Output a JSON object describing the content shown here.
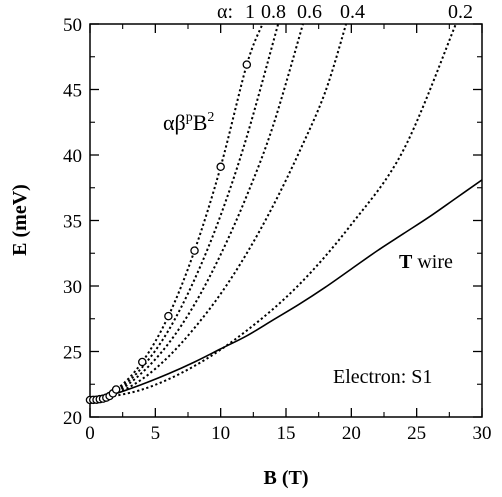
{
  "chart_data": {
    "type": "line",
    "xlabel": "B (T)",
    "ylabel": "E (meV)",
    "xlim": [
      0,
      30
    ],
    "ylim": [
      20,
      50
    ],
    "xticks": [
      0,
      5,
      10,
      15,
      20,
      25,
      30
    ],
    "yticks": [
      20,
      25,
      30,
      35,
      40,
      45,
      50
    ],
    "grid": false,
    "annotations": {
      "alpha_header": "α:",
      "alpha_values": [
        "1",
        "0.8",
        "0.6",
        "0.4",
        "0.2"
      ],
      "formula": "αβ",
      "formula_sup1": "p",
      "formula_mid": "B",
      "formula_sup2": "2",
      "wire_label_bold": "T",
      "wire_label_rest": " wire",
      "corner_label": "Electron: S1"
    },
    "series": [
      {
        "style": "solid",
        "x": [
          0,
          2,
          4,
          6,
          8,
          10,
          12,
          14,
          16,
          18,
          20,
          22,
          24,
          26,
          28,
          30
        ],
        "y": [
          21.3,
          21.8,
          22.5,
          23.3,
          24.2,
          25.2,
          26.2,
          27.4,
          28.6,
          29.9,
          31.3,
          32.7,
          34.0,
          35.3,
          36.7,
          38.1
        ]
      },
      {
        "alpha": "1",
        "style": "dotted",
        "x": [
          0,
          2,
          4,
          6,
          8,
          10,
          12,
          13.2
        ],
        "y": [
          21.3,
          22.1,
          24.2,
          27.7,
          32.7,
          39.1,
          46.9,
          50
        ]
      },
      {
        "alpha": "0.8",
        "style": "dotted",
        "x": [
          0,
          2,
          4,
          6,
          8,
          10,
          12,
          14.4
        ],
        "y": [
          21.3,
          22.0,
          23.8,
          26.6,
          30.5,
          35.4,
          41.4,
          50
        ]
      },
      {
        "alpha": "0.6",
        "style": "dotted",
        "x": [
          0,
          2,
          4,
          6,
          8,
          10,
          12,
          14,
          16.3
        ],
        "y": [
          21.3,
          21.9,
          23.4,
          25.6,
          28.6,
          32.4,
          36.9,
          42.2,
          50
        ]
      },
      {
        "alpha": "0.4",
        "style": "dotted",
        "x": [
          0,
          2,
          4,
          6,
          8,
          10,
          12,
          14,
          16,
          18,
          19.6
        ],
        "y": [
          21.3,
          21.8,
          22.9,
          24.6,
          26.8,
          29.4,
          32.5,
          36.1,
          40.2,
          44.8,
          50
        ]
      },
      {
        "alpha": "0.2",
        "style": "dotted",
        "x": [
          0,
          4,
          8,
          12,
          16,
          20,
          24,
          28
        ],
        "y": [
          21.3,
          22.1,
          23.9,
          26.6,
          30.1,
          34.7,
          40.4,
          50
        ]
      }
    ],
    "markers": {
      "series_alpha": "1",
      "shape": "open-circle",
      "x": [
        0,
        0.25,
        0.5,
        0.75,
        1,
        1.25,
        1.5,
        1.75,
        2,
        4,
        6,
        8,
        10,
        12
      ],
      "y": [
        21.3,
        21.31,
        21.32,
        21.36,
        21.4,
        21.48,
        21.6,
        21.8,
        22.1,
        24.2,
        27.7,
        32.7,
        39.1,
        46.9
      ]
    }
  }
}
